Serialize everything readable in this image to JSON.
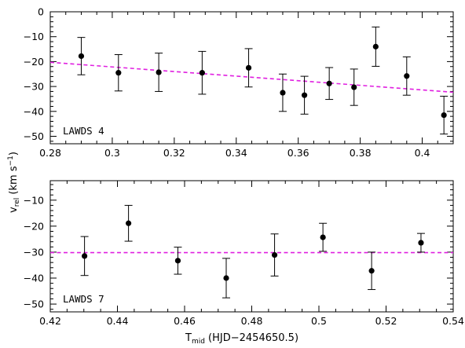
{
  "chart_data": [
    {
      "type": "scatter",
      "panel_label": "LAWDS 4",
      "xlim": [
        0.28,
        0.41
      ],
      "ylim": [
        -53,
        0
      ],
      "xticks": [
        0.28,
        0.3,
        0.32,
        0.34,
        0.36,
        0.38,
        0.4
      ],
      "xtick_labels": [
        "0.28",
        "0.3",
        "0.32",
        "0.34",
        "0.36",
        "0.38",
        "0.4"
      ],
      "yticks": [
        0,
        -10,
        -20,
        -30,
        -40,
        -50
      ],
      "ytick_labels": [
        "0",
        "−10",
        "−20",
        "−30",
        "−40",
        "−50"
      ],
      "points": [
        {
          "x": 0.29,
          "y": -17.8,
          "err": 7.5
        },
        {
          "x": 0.302,
          "y": -24.5,
          "err": 7.3
        },
        {
          "x": 0.315,
          "y": -24.3,
          "err": 7.7
        },
        {
          "x": 0.329,
          "y": -24.5,
          "err": 8.6
        },
        {
          "x": 0.344,
          "y": -22.5,
          "err": 7.7
        },
        {
          "x": 0.355,
          "y": -32.5,
          "err": 7.5
        },
        {
          "x": 0.362,
          "y": -33.5,
          "err": 7.6
        },
        {
          "x": 0.37,
          "y": -28.8,
          "err": 6.4
        },
        {
          "x": 0.378,
          "y": -30.3,
          "err": 7.3
        },
        {
          "x": 0.385,
          "y": -14.0,
          "err": 7.9
        },
        {
          "x": 0.395,
          "y": -25.8,
          "err": 7.7
        },
        {
          "x": 0.407,
          "y": -41.5,
          "err": 7.6
        }
      ],
      "fit_line": {
        "x": [
          0.28,
          0.41
        ],
        "y": [
          -20.3,
          -32.3
        ],
        "color": "#e020e0"
      },
      "marker_color": "#000000"
    },
    {
      "type": "scatter",
      "panel_label": "LAWDS 7",
      "xlim": [
        0.42,
        0.54
      ],
      "ylim": [
        -53,
        -2.5
      ],
      "xticks": [
        0.42,
        0.44,
        0.46,
        0.48,
        0.5,
        0.52,
        0.54
      ],
      "xtick_labels": [
        "0.42",
        "0.44",
        "0.46",
        "0.48",
        "0.5",
        "0.52",
        "0.54"
      ],
      "yticks": [
        -10,
        -20,
        -30,
        -40,
        -50
      ],
      "ytick_labels": [
        "−10",
        "−20",
        "−30",
        "−40",
        "−50"
      ],
      "points": [
        {
          "x": 0.4302,
          "y": -31.5,
          "err": 7.5
        },
        {
          "x": 0.4433,
          "y": -18.9,
          "err": 6.9
        },
        {
          "x": 0.458,
          "y": -33.3,
          "err": 5.2
        },
        {
          "x": 0.4724,
          "y": -40.0,
          "err": 7.6
        },
        {
          "x": 0.4868,
          "y": -31.1,
          "err": 8.1
        },
        {
          "x": 0.5012,
          "y": -24.3,
          "err": 5.4
        },
        {
          "x": 0.5157,
          "y": -37.2,
          "err": 7.2
        },
        {
          "x": 0.5304,
          "y": -26.4,
          "err": 3.6
        }
      ],
      "fit_line": {
        "x": [
          0.42,
          0.54
        ],
        "y": [
          -30.2,
          -30.2
        ],
        "color": "#e020e0"
      },
      "marker_color": "#000000"
    }
  ],
  "axes": {
    "ylabel_main": "v",
    "ylabel_sub": "rel",
    "ylabel_unit_pre": " (km s",
    "ylabel_unit_sup": "−1",
    "ylabel_unit_post": ")",
    "xlabel_main": "T",
    "xlabel_sub": "mid",
    "xlabel_unit": "  (HJD−2454650.5)"
  }
}
